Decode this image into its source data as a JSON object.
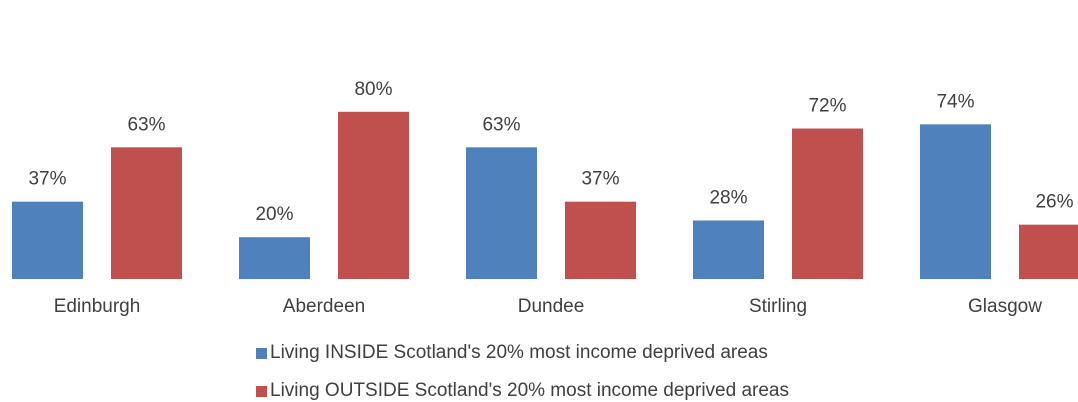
{
  "chart_data": {
    "type": "bar",
    "categories": [
      "Edinburgh",
      "Aberdeen",
      "Dundee",
      "Stirling",
      "Glasgow"
    ],
    "series": [
      {
        "name": "Living INSIDE Scotland's 20% most income deprived areas",
        "values": [
          37,
          20,
          63,
          28,
          74
        ],
        "color": "#4f81bd"
      },
      {
        "name": "Living OUTSIDE Scotland's 20% most income deprived areas",
        "values": [
          63,
          80,
          37,
          72,
          26
        ],
        "color": "#c0504d"
      }
    ],
    "value_suffix": "%",
    "ylim": [
      0,
      100
    ],
    "grid": false,
    "legend_position": "bottom"
  }
}
